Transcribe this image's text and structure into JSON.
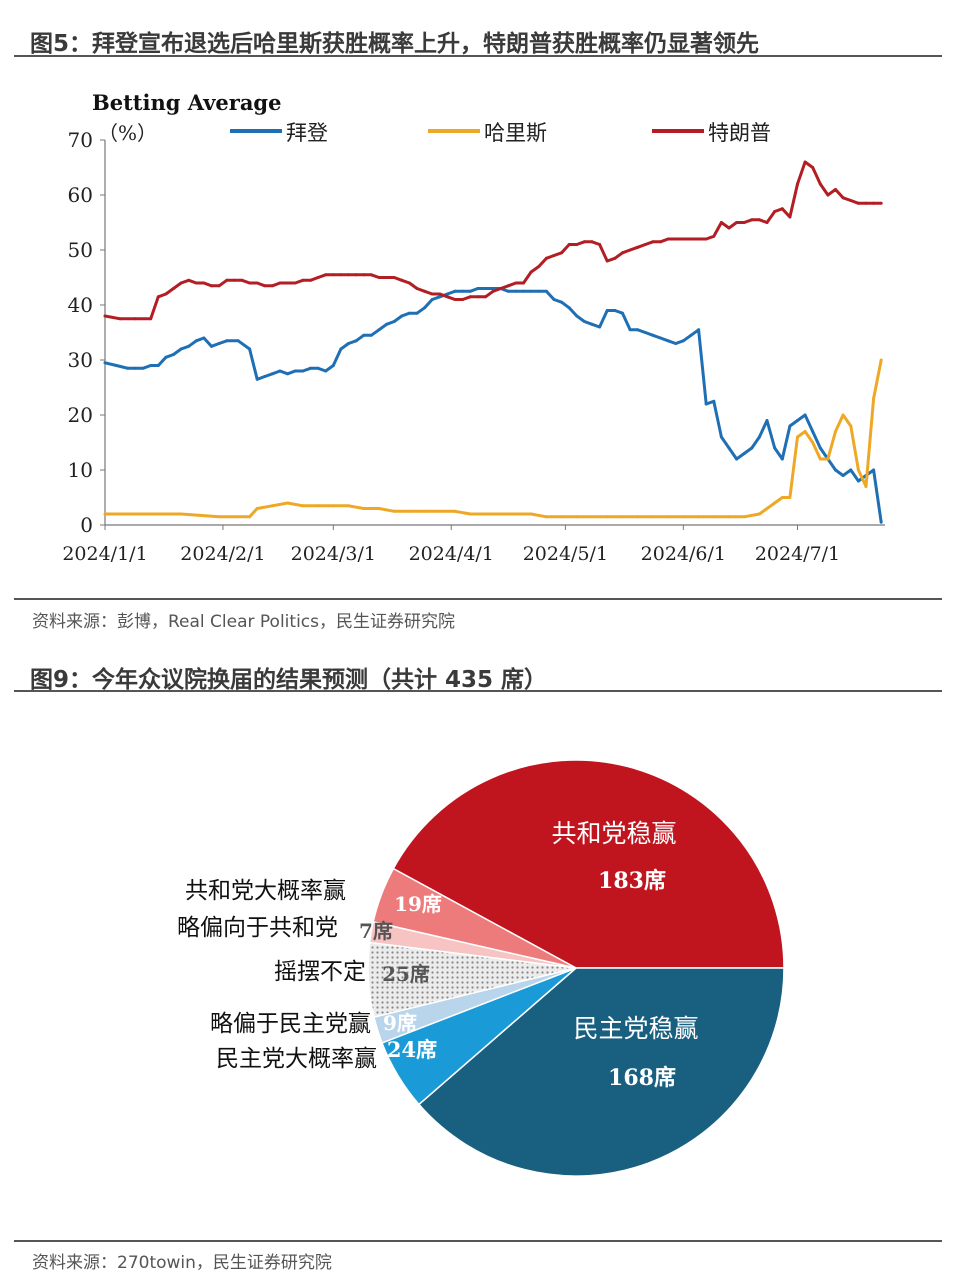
{
  "figure5": {
    "title": "图5：拜登宣布退选后哈里斯获胜概率上升，特朗普获胜概率仍显著领先",
    "source": "资料来源：彭博，Real Clear Politics，民生证券研究院"
  },
  "figure9": {
    "title": "图9：今年众议院换届的结果预测（共计 435 席）",
    "source": "资料来源：270towin，民生证券研究院"
  },
  "chart_data": [
    {
      "type": "line",
      "title": "Betting Average",
      "ylabel": "（%）",
      "ylim": [
        0,
        70
      ],
      "yticks": [
        "0",
        "10",
        "20",
        "30",
        "40",
        "50",
        "60",
        "70"
      ],
      "xlim": [
        0,
        205
      ],
      "xtick_labels": [
        "2024/1/1",
        "2024/2/1",
        "2024/3/1",
        "2024/4/1",
        "2024/5/1",
        "2024/6/1",
        "2024/7/1"
      ],
      "xtick_positions": [
        0,
        31,
        60,
        91,
        121,
        152,
        182
      ],
      "legend_position": "top",
      "series": [
        {
          "name": "拜登",
          "color": "#1f6fb4",
          "x": [
            0,
            3,
            6,
            8,
            10,
            12,
            14,
            16,
            18,
            20,
            22,
            24,
            26,
            28,
            30,
            32,
            35,
            38,
            40,
            42,
            44,
            46,
            48,
            50,
            52,
            54,
            56,
            58,
            60,
            62,
            64,
            66,
            68,
            70,
            72,
            74,
            76,
            78,
            80,
            82,
            84,
            86,
            88,
            90,
            92,
            94,
            96,
            98,
            100,
            102,
            104,
            106,
            108,
            110,
            112,
            114,
            116,
            118,
            120,
            122,
            124,
            126,
            128,
            130,
            132,
            134,
            136,
            138,
            140,
            142,
            144,
            146,
            148,
            150,
            152,
            154,
            156,
            158,
            160,
            162,
            164,
            166,
            168,
            170,
            172,
            174,
            176,
            178,
            180,
            182,
            184,
            186,
            188,
            190,
            192,
            194,
            196,
            198,
            200,
            202,
            204
          ],
          "y": [
            29.5,
            29,
            28.5,
            28.5,
            28.5,
            29,
            29,
            30.5,
            31,
            32,
            32.5,
            33.5,
            34,
            32.5,
            33,
            33.5,
            33.5,
            32,
            26.5,
            27,
            27.5,
            28,
            27.5,
            28,
            28,
            28.5,
            28.5,
            28,
            29,
            32,
            33,
            33.5,
            34.5,
            34.5,
            35.5,
            36.5,
            37,
            38,
            38.5,
            38.5,
            39.5,
            41,
            41.5,
            42,
            42.5,
            42.5,
            42.5,
            43,
            43,
            43,
            43,
            42.5,
            42.5,
            42.5,
            42.5,
            42.5,
            42.5,
            41,
            40.5,
            39.5,
            38,
            37,
            36.5,
            36,
            39,
            39,
            38.5,
            35.5,
            35.5,
            35,
            34.5,
            34,
            33.5,
            33,
            33.5,
            34.5,
            35.5,
            22,
            22.5,
            16,
            14,
            12,
            13,
            14,
            16,
            19,
            14,
            12,
            18,
            19,
            20,
            17,
            14,
            12,
            10,
            9,
            10,
            8,
            9,
            10,
            0.5
          ]
        },
        {
          "name": "哈里斯",
          "color": "#eea826",
          "x": [
            0,
            10,
            20,
            30,
            38,
            40,
            44,
            48,
            52,
            56,
            60,
            64,
            68,
            72,
            76,
            80,
            84,
            88,
            92,
            96,
            100,
            104,
            108,
            112,
            116,
            120,
            124,
            128,
            132,
            136,
            140,
            144,
            148,
            152,
            156,
            160,
            164,
            168,
            172,
            176,
            178,
            180,
            182,
            184,
            186,
            188,
            190,
            192,
            194,
            196,
            198,
            200,
            202,
            204
          ],
          "y": [
            2,
            2,
            2,
            1.5,
            1.5,
            3,
            3.5,
            4,
            3.5,
            3.5,
            3.5,
            3.5,
            3,
            3,
            2.5,
            2.5,
            2.5,
            2.5,
            2.5,
            2,
            2,
            2,
            2,
            2,
            1.5,
            1.5,
            1.5,
            1.5,
            1.5,
            1.5,
            1.5,
            1.5,
            1.5,
            1.5,
            1.5,
            1.5,
            1.5,
            1.5,
            2,
            4,
            5,
            5,
            16,
            17,
            15,
            12,
            12,
            17,
            20,
            18,
            10,
            7,
            23,
            30
          ]
        },
        {
          "name": "特朗普",
          "color": "#b21e23",
          "x": [
            0,
            4,
            8,
            12,
            14,
            16,
            18,
            20,
            22,
            24,
            26,
            28,
            30,
            32,
            34,
            36,
            38,
            40,
            42,
            44,
            46,
            48,
            50,
            52,
            54,
            56,
            58,
            60,
            62,
            64,
            66,
            68,
            70,
            72,
            74,
            76,
            78,
            80,
            82,
            84,
            86,
            88,
            90,
            92,
            94,
            96,
            98,
            100,
            102,
            104,
            106,
            108,
            110,
            112,
            114,
            116,
            118,
            120,
            122,
            124,
            126,
            128,
            130,
            132,
            134,
            136,
            138,
            140,
            142,
            144,
            146,
            148,
            150,
            152,
            154,
            156,
            158,
            160,
            162,
            164,
            166,
            168,
            170,
            172,
            174,
            176,
            178,
            180,
            182,
            184,
            186,
            188,
            190,
            192,
            194,
            196,
            198,
            200,
            202,
            204
          ],
          "y": [
            38,
            37.5,
            37.5,
            37.5,
            41.5,
            42,
            43,
            44,
            44.5,
            44,
            44,
            43.5,
            43.5,
            44.5,
            44.5,
            44.5,
            44,
            44,
            43.5,
            43.5,
            44,
            44,
            44,
            44.5,
            44.5,
            45,
            45.5,
            45.5,
            45.5,
            45.5,
            45.5,
            45.5,
            45.5,
            45,
            45,
            45,
            44.5,
            44,
            43,
            42.5,
            42,
            42,
            41.5,
            41,
            41,
            41.5,
            41.5,
            41.5,
            42.5,
            43,
            43.5,
            44,
            44,
            46,
            47,
            48.5,
            49,
            49.5,
            51,
            51,
            51.5,
            51.5,
            51,
            48,
            48.5,
            49.5,
            50,
            50.5,
            51,
            51.5,
            51.5,
            52,
            52,
            52,
            52,
            52,
            52,
            52.5,
            55,
            54,
            55,
            55,
            55.5,
            55.5,
            55,
            57,
            57.5,
            56,
            62,
            66,
            65,
            62,
            60,
            61,
            59.5,
            59,
            58.5,
            58.5,
            58.5,
            58.5
          ]
        }
      ]
    },
    {
      "type": "pie",
      "title": "",
      "total_seats": 435,
      "slices": [
        {
          "label": "共和党稳赢",
          "value": 183,
          "value_label": "183席",
          "color": "#c0141f"
        },
        {
          "label": "民主党稳赢",
          "value": 168,
          "value_label": "168席",
          "color": "#185f80"
        },
        {
          "label": "民主党大概率赢",
          "value": 24,
          "value_label": "24席",
          "color": "#1a9ad6"
        },
        {
          "label": "略偏于民主党赢",
          "value": 9,
          "value_label": "9席",
          "color": "#b9d5ec"
        },
        {
          "label": "摇摆不定",
          "value": 25,
          "value_label": "25席",
          "color": "#e9e9e9"
        },
        {
          "label": "略偏向于共和党",
          "value": 7,
          "value_label": "7席",
          "color": "#f7c3c3"
        },
        {
          "label": "共和党大概率赢",
          "value": 19,
          "value_label": "19席",
          "color": "#ee7b7b"
        }
      ]
    }
  ]
}
